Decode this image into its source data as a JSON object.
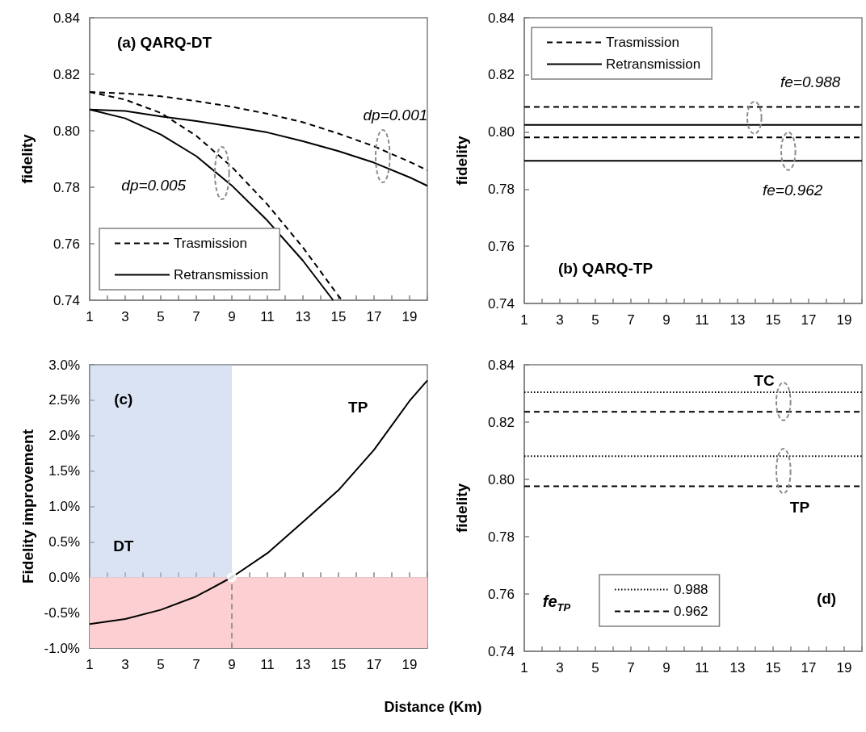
{
  "chart_data": [
    {
      "type": "line",
      "title": "(a) QARQ-DT",
      "ylabel": "fidelity",
      "legend": "bottom left",
      "xlim": [
        1,
        20
      ],
      "ylim": [
        0.74,
        0.84
      ],
      "xticks": [
        1,
        {
          "value": 2,
          "label": null
        },
        3,
        {
          "value": 4,
          "label": null
        },
        5,
        {
          "value": 6,
          "label": null
        },
        7,
        {
          "value": 8,
          "label": null
        },
        9,
        {
          "value": 10,
          "label": null
        },
        11,
        {
          "value": 12,
          "label": null
        },
        13,
        {
          "value": 14,
          "label": null
        },
        15,
        {
          "value": 16,
          "label": null
        },
        17,
        {
          "value": 18,
          "label": null
        },
        19,
        {
          "value": 20,
          "label": null
        }
      ],
      "yticks": [
        0.74,
        0.76,
        0.78,
        {
          "value": 0.8,
          "label": "0.80"
        },
        0.82,
        0.84
      ],
      "annotations": [
        "dp=0.001",
        "dp=0.005"
      ],
      "series": [
        {
          "name": "Trasmission",
          "color": "#000000",
          "line_style": "dashed",
          "x": [
            1,
            3,
            5,
            7,
            9,
            11,
            13,
            15,
            17,
            19,
            20
          ],
          "values": [
            0.8137,
            0.8132,
            0.8122,
            0.8105,
            0.8085,
            0.806,
            0.803,
            0.799,
            0.7945,
            0.789,
            0.786
          ]
        },
        {
          "name": "Retransmission",
          "color": "#000000",
          "line_style": "solid",
          "x": [
            1,
            3,
            5,
            7,
            9,
            11,
            13,
            15,
            17,
            19,
            20
          ],
          "values": [
            0.8075,
            0.807,
            0.8051,
            0.8034,
            0.8015,
            0.7994,
            0.7963,
            0.7928,
            0.7887,
            0.7835,
            0.7805
          ]
        },
        {
          "color": "#000000",
          "line_style": "dashed",
          "x": [
            1,
            3,
            5,
            7,
            9,
            11,
            13,
            15,
            15.2
          ],
          "values": [
            0.8137,
            0.811,
            0.8063,
            0.7982,
            0.7872,
            0.7739,
            0.7587,
            0.7415,
            0.74
          ]
        },
        {
          "color": "#000000",
          "line_style": "solid",
          "x": [
            1,
            3,
            5,
            7,
            9,
            11,
            13,
            14.7
          ],
          "values": [
            0.8075,
            0.8044,
            0.7987,
            0.791,
            0.7806,
            0.7682,
            0.754,
            0.74
          ]
        }
      ]
    },
    {
      "type": "line",
      "title": "(b) QARQ-TP",
      "ylabel": "fidelity",
      "legend": "top left",
      "xlim": [
        1,
        20
      ],
      "ylim": [
        0.74,
        0.84
      ],
      "xticks": [
        1,
        {
          "value": 2,
          "label": null
        },
        3,
        {
          "value": 4,
          "label": null
        },
        5,
        {
          "value": 6,
          "label": null
        },
        7,
        {
          "value": 8,
          "label": null
        },
        9,
        {
          "value": 10,
          "label": null
        },
        11,
        {
          "value": 12,
          "label": null
        },
        13,
        {
          "value": 14,
          "label": null
        },
        15,
        {
          "value": 16,
          "label": null
        },
        17,
        {
          "value": 18,
          "label": null
        },
        19,
        {
          "value": 20,
          "label": null
        }
      ],
      "yticks": [
        0.74,
        0.76,
        0.78,
        {
          "value": 0.8,
          "label": "0.80"
        },
        0.82,
        0.84
      ],
      "annotations": [
        "fe=0.988",
        "fe=0.962"
      ],
      "series": [
        {
          "name": "Trasmission",
          "color": "#000000",
          "line_style": "dashed",
          "x": [
            1,
            20
          ],
          "values": [
            0.8088,
            0.8088
          ]
        },
        {
          "name": "Retransmission",
          "color": "#000000",
          "line_style": "solid",
          "x": [
            1,
            20
          ],
          "values": [
            0.8025,
            0.8025
          ]
        },
        {
          "color": "#000000",
          "line_style": "dashed",
          "x": [
            1,
            20
          ],
          "values": [
            0.7981,
            0.7981
          ]
        },
        {
          "color": "#000000",
          "line_style": "solid",
          "x": [
            1,
            20
          ],
          "values": [
            0.7899,
            0.7899
          ]
        }
      ]
    },
    {
      "type": "line",
      "xlabel": "Distance (Km)",
      "ylabel": "Fidelity improvement",
      "xlim": [
        1,
        20
      ],
      "ylim": [
        -1,
        3
      ],
      "xticks": [
        1,
        {
          "value": 2,
          "label": null
        },
        3,
        {
          "value": 4,
          "label": null
        },
        5,
        {
          "value": 6,
          "label": null
        },
        7,
        {
          "value": 8,
          "label": null
        },
        9,
        {
          "value": 10,
          "label": null
        },
        11,
        {
          "value": 12,
          "label": null
        },
        13,
        {
          "value": 14,
          "label": null
        },
        15,
        {
          "value": 16,
          "label": null
        },
        17,
        {
          "value": 18,
          "label": null
        },
        19,
        {
          "value": 20,
          "label": null
        }
      ],
      "yticks": [
        {
          "value": -1,
          "label": "-1.0%"
        },
        {
          "value": -0.5,
          "label": "-0.5%"
        },
        {
          "value": 0,
          "label": "0.0%"
        },
        {
          "value": 0.5,
          "label": "0.5%"
        },
        {
          "value": 1,
          "label": "1.0%"
        },
        {
          "value": 1.5,
          "label": "1.5%"
        },
        {
          "value": 2,
          "label": "2.0%"
        },
        {
          "value": 2.5,
          "label": "2.5%"
        },
        {
          "value": 3,
          "label": "3.0%"
        }
      ],
      "annotations": [
        "(c)",
        "TP",
        "DT"
      ],
      "bands": [
        {
          "axis": "x",
          "from": 1,
          "to": 9,
          "color": "#b4c7e7"
        },
        {
          "axis": "y",
          "from": -1,
          "to": 0,
          "color": "#fcd0d2"
        }
      ],
      "ref_lines": [
        {
          "axis": "x",
          "value": 9,
          "color": "#808080",
          "line_style": "dashed"
        }
      ],
      "series": [
        {
          "color": "#000000",
          "line_style": "solid",
          "x": [
            1,
            3,
            5,
            7,
            9,
            11,
            13,
            15,
            17,
            19,
            20
          ],
          "values": [
            -0.66,
            -0.59,
            -0.46,
            -0.27,
            0,
            0.34,
            0.78,
            1.23,
            1.8,
            2.49,
            2.78
          ]
        },
        {
          "type": "scatter",
          "marker": "circle",
          "color": "#ffffff",
          "x": [
            9
          ],
          "values": [
            0
          ]
        }
      ]
    },
    {
      "type": "line",
      "ylabel": "fidelity",
      "legend": "bottom",
      "legend_title": "fe$_{TP}$",
      "xlim": [
        1,
        20
      ],
      "ylim": [
        0.74,
        0.84
      ],
      "xticks": [
        1,
        {
          "value": 2,
          "label": null
        },
        3,
        {
          "value": 4,
          "label": null
        },
        5,
        {
          "value": 6,
          "label": null
        },
        7,
        {
          "value": 8,
          "label": null
        },
        9,
        {
          "value": 10,
          "label": null
        },
        11,
        {
          "value": 12,
          "label": null
        },
        13,
        {
          "value": 14,
          "label": null
        },
        15,
        {
          "value": 16,
          "label": null
        },
        17,
        {
          "value": 18,
          "label": null
        },
        19,
        {
          "value": 20,
          "label": null
        }
      ],
      "yticks": [
        0.74,
        0.76,
        0.78,
        {
          "value": 0.8,
          "label": "0.80"
        },
        0.82,
        0.84
      ],
      "annotations": [
        "TC",
        "TP",
        "(d)"
      ],
      "series": [
        {
          "name": "0.988",
          "color": "#000000",
          "line_style": "dotted",
          "x": [
            1,
            20
          ],
          "values": [
            0.8304,
            0.8304
          ]
        },
        {
          "name": "0.962",
          "color": "#000000",
          "line_style": "dashed",
          "x": [
            1,
            20
          ],
          "values": [
            0.8236,
            0.8236
          ]
        },
        {
          "color": "#000000",
          "line_style": "dotted",
          "x": [
            1,
            20
          ],
          "values": [
            0.8081,
            0.8081
          ]
        },
        {
          "color": "#000000",
          "line_style": "dashed",
          "x": [
            1,
            20
          ],
          "values": [
            0.7976,
            0.7976
          ]
        }
      ]
    }
  ]
}
